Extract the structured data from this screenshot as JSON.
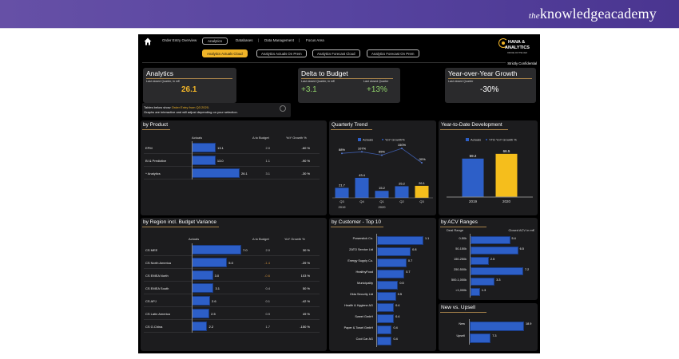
{
  "banner": {
    "brand_prefix": "the",
    "brand_name": "knowledgeacademy"
  },
  "nav": {
    "items": [
      "Order Entry Overview",
      "Analytics",
      "Databases",
      "Data Management",
      "Focus Area"
    ],
    "active": "Analytics",
    "sub_buttons": [
      "Analytics Actuals Cloud",
      "Analytics Actuals On Prem",
      "Analytics Forecast Cloud",
      "Analytics Forecast On Prem"
    ],
    "active_sub": "Analytics Actuals Cloud"
  },
  "logo": {
    "line1": "HANA &",
    "line2": "ANALYTICS",
    "line3": "OFFICE OF THE CEO"
  },
  "confidential": "Strictly Confidential",
  "kpis": {
    "analytics": {
      "title": "Analytics",
      "label": "Last closed Quarter, in m€",
      "value": "26.1",
      "color": "#f0b428"
    },
    "delta": {
      "title": "Delta to Budget",
      "label1": "Last closed Quarter, in m€",
      "value1": "+3.1",
      "label2": "Last closed Quarter",
      "value2": "+13%",
      "color": "#8fd16a"
    },
    "yoy": {
      "title": "Year-over-Year Growth",
      "label": "Last closed Quarter",
      "value": "-30%",
      "color": "#ffffff"
    }
  },
  "note": {
    "line1_prefix": "Tables below show ",
    "line1_highlight": "Order Entry from Q3 2020",
    "line1_suffix": ".",
    "line2": "Graphs are interactive and will adjust depending on your selection."
  },
  "by_product": {
    "title": "by Product",
    "headers": [
      "Actuals",
      "Δ to Budget",
      "YoY Growth %"
    ],
    "max": 26.1,
    "rows": [
      {
        "label": "EPM",
        "actual": 13.1,
        "actual_label": "13.1",
        "delta": "2.0",
        "yoy": "-60 %"
      },
      {
        "label": "BI & Predictive",
        "actual": 13.0,
        "actual_label": "13.0",
        "delta": "1.1",
        "yoy": "-90 %"
      },
      {
        "label": "^ Analytics",
        "actual": 26.1,
        "actual_label": "26.1",
        "delta": "3.1",
        "yoy": "-30 %"
      }
    ]
  },
  "quarterly": {
    "title": "Quarterly Trend",
    "legend": [
      "Actuals",
      "YoY Growth%"
    ],
    "quarters": [
      "Q3",
      "Q4",
      "Q1",
      "Q2",
      "Q3"
    ],
    "years": [
      "2019",
      "2020"
    ],
    "actuals": [
      21.7,
      43.4,
      15.2,
      25.2,
      26.1
    ],
    "actual_labels": [
      "21.7",
      "43.4",
      "15.2",
      "25.2",
      "26.1"
    ],
    "growth": [
      88,
      107,
      65,
      150,
      -30
    ],
    "growth_labels": [
      "88%",
      "107%",
      "65%",
      "150%",
      "-30%"
    ],
    "highlight_color": "#f5be1c",
    "bar_color": "#2d5fc8"
  },
  "ytd": {
    "title": "Year-to-Date Development",
    "legend": [
      "Actuals",
      "YTD YoY Growth %"
    ],
    "years": [
      "2019",
      "2020"
    ],
    "values": [
      59.2,
      66.5
    ],
    "labels": [
      "59.2",
      "66.5"
    ],
    "colors": [
      "#2d5fc8",
      "#f5be1c"
    ]
  },
  "by_region": {
    "title": "by Region incl. Budget Variance",
    "headers": [
      "Actuals",
      "Δ to Budget",
      "YoY Growth %"
    ],
    "max": 7.0,
    "rows": [
      {
        "label": "CS MEE",
        "actual": 7.0,
        "actual_label": "7.0",
        "delta": "2.0",
        "delta_neg": false,
        "yoy": "30 %"
      },
      {
        "label": "CS North America",
        "actual": 5.0,
        "actual_label": "5.0",
        "delta": "-1.4",
        "delta_neg": true,
        "yoy": "-39 %"
      },
      {
        "label": "CS EMEA North",
        "actual": 3.0,
        "actual_label": "3.0",
        "delta": "-0.6",
        "delta_neg": true,
        "yoy": "103 %"
      },
      {
        "label": "CS EMEA South",
        "actual": 3.1,
        "actual_label": "3.1",
        "delta": "0.4",
        "delta_neg": false,
        "yoy": "50 %"
      },
      {
        "label": "CS APJ",
        "actual": 2.6,
        "actual_label": "2.6",
        "delta": "0.1",
        "delta_neg": false,
        "yoy": "-42 %"
      },
      {
        "label": "CS Latin America",
        "actual": 2.5,
        "actual_label": "2.5",
        "delta": "0.9",
        "delta_neg": false,
        "yoy": "49 %"
      },
      {
        "label": "CS G.China",
        "actual": 2.2,
        "actual_label": "2.2",
        "delta": "1.7",
        "delta_neg": false,
        "yoy": "-150 %"
      }
    ]
  },
  "by_customer": {
    "title": "by Customer - Top 10",
    "max": 1.1,
    "rows": [
      {
        "label": "Powerstick Co.",
        "value": 1.1,
        "value_label": "1.1"
      },
      {
        "label": "ZATO Service Ltd",
        "value": 0.8,
        "value_label": "0.8"
      },
      {
        "label": "Energy Supply Co.",
        "value": 0.7,
        "value_label": "0.7"
      },
      {
        "label": "HealthyFood",
        "value": 0.65,
        "value_label": "0.7"
      },
      {
        "label": "Municipality",
        "value": 0.5,
        "value_label": "0.5"
      },
      {
        "label": "Okta Security Ltd",
        "value": 0.45,
        "value_label": "0.5"
      },
      {
        "label": "Health & Hygiene AG",
        "value": 0.4,
        "value_label": "0.4"
      },
      {
        "label": "Sweet GmbH",
        "value": 0.4,
        "value_label": "0.4"
      },
      {
        "label": "Paper & Towel GmbH",
        "value": 0.35,
        "value_label": "0.4"
      },
      {
        "label": "Cool Car AG",
        "value": 0.35,
        "value_label": "0.4"
      }
    ]
  },
  "by_acv": {
    "title": "by ACV Ranges",
    "header_left": "Deal Range",
    "header_right": "Closed ACV in m€",
    "max": 7.2,
    "rows": [
      {
        "label": "0-50k",
        "value": 5.4,
        "value_label": "5.4"
      },
      {
        "label": "50-150k",
        "value": 6.5,
        "value_label": "6.5"
      },
      {
        "label": "150-250k",
        "value": 2.5,
        "value_label": "2.5"
      },
      {
        "label": "250-500k",
        "value": 7.2,
        "value_label": "7.2"
      },
      {
        "label": "500-1,000k",
        "value": 3.3,
        "value_label": "3.3"
      },
      {
        "label": ">1,000k",
        "value": 1.3,
        "value_label": "1.3"
      }
    ]
  },
  "new_upsell": {
    "title": "New vs. Upsell",
    "max": 18.9,
    "rows": [
      {
        "label": "New",
        "value": 18.9,
        "value_label": "18.9"
      },
      {
        "label": "Upsell",
        "value": 7.3,
        "value_label": "7.3"
      }
    ]
  }
}
